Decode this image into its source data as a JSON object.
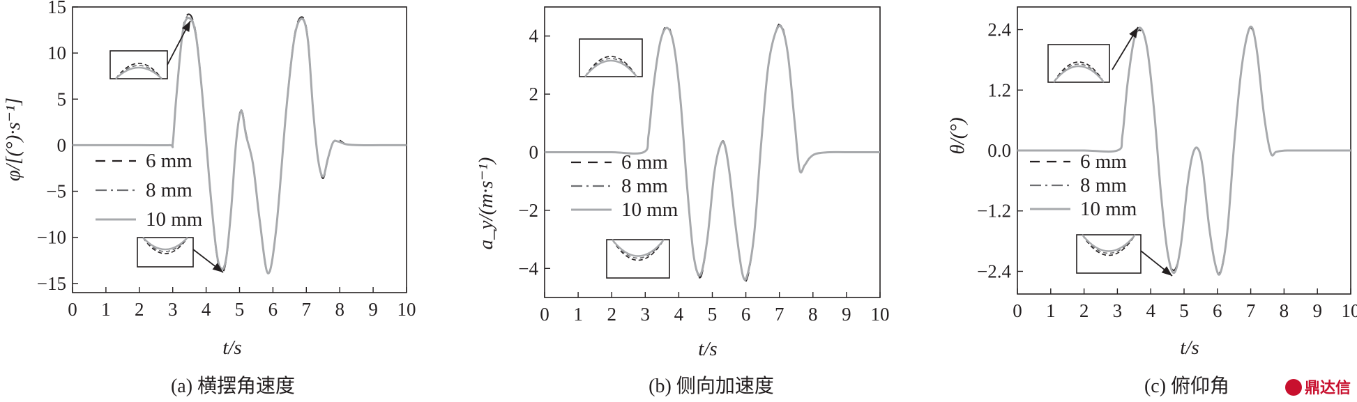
{
  "chart_data": [
    {
      "type": "line",
      "caption": "(a) 横摆角速度",
      "xlabel": "t/s",
      "ylabel": "φ/[(°)·s⁻¹]",
      "xlim": [
        0,
        10
      ],
      "ylim": [
        -16,
        15
      ],
      "xticks": [
        "0",
        "1",
        "2",
        "3",
        "4",
        "5",
        "6",
        "7",
        "8",
        "9",
        "10"
      ],
      "yticks": [
        "15",
        "10",
        "5",
        "0",
        "−5",
        "−10",
        "−15"
      ],
      "ytick_values": [
        15,
        10,
        5,
        0,
        -5,
        -10,
        -15
      ],
      "legend": [
        "6 mm",
        "8 mm",
        "10 mm"
      ],
      "legend_position": "lower-left",
      "zoom_insets": [
        "peak at t≈3.5 s",
        "trough at t≈4.4 s"
      ],
      "x": [
        0,
        1,
        2,
        2.9,
        3.0,
        3.1,
        3.3,
        3.5,
        3.7,
        3.9,
        4.1,
        4.3,
        4.45,
        4.6,
        4.75,
        4.9,
        5.05,
        5.2,
        5.4,
        5.6,
        5.85,
        6.1,
        6.4,
        6.65,
        6.88,
        7.05,
        7.2,
        7.35,
        7.5,
        7.65,
        7.8,
        7.95,
        8.2,
        8.6,
        9.2,
        10
      ],
      "series": [
        {
          "name": "6 mm",
          "values": [
            0,
            0,
            0,
            0,
            0.2,
            5.0,
            12.5,
            14.2,
            12.0,
            5.0,
            -4.0,
            -11.5,
            -13.8,
            -12.5,
            -7.0,
            0.5,
            3.9,
            1.2,
            -2.0,
            -8.0,
            -14.0,
            -9.0,
            4.0,
            12.0,
            13.9,
            11.5,
            4.0,
            -1.5,
            -3.6,
            -1.5,
            0.3,
            0.6,
            0.1,
            0,
            0,
            0
          ]
        },
        {
          "name": "8 mm",
          "values": [
            0,
            0,
            0,
            0,
            0.2,
            5.0,
            12.4,
            14.0,
            11.9,
            5.0,
            -4.0,
            -11.4,
            -13.6,
            -12.4,
            -7.0,
            0.5,
            3.8,
            1.1,
            -2.0,
            -8.0,
            -13.9,
            -9.0,
            4.0,
            11.9,
            13.8,
            11.4,
            4.0,
            -1.5,
            -3.5,
            -1.5,
            0.3,
            0.5,
            0.1,
            0,
            0,
            0
          ]
        },
        {
          "name": "10 mm",
          "values": [
            0,
            0,
            0,
            0,
            0.2,
            4.9,
            12.3,
            13.8,
            11.8,
            4.9,
            -4.0,
            -11.3,
            -13.4,
            -12.3,
            -7.0,
            0.4,
            3.7,
            1.0,
            -2.0,
            -8.0,
            -13.9,
            -9.0,
            3.9,
            11.8,
            13.7,
            11.3,
            3.9,
            -1.5,
            -3.4,
            -1.4,
            0.3,
            0.4,
            0.1,
            0,
            0,
            0
          ]
        }
      ]
    },
    {
      "type": "line",
      "caption": "(b) 侧向加速度",
      "xlabel": "t/s",
      "ylabel": "a_y/(m·s⁻¹)",
      "xlim": [
        0,
        10
      ],
      "ylim": [
        -5,
        5
      ],
      "xticks": [
        "0",
        "1",
        "2",
        "3",
        "4",
        "5",
        "6",
        "7",
        "8",
        "9",
        "10"
      ],
      "yticks": [
        "4",
        "2",
        "0",
        "−2",
        "−4"
      ],
      "ytick_values": [
        4,
        2,
        0,
        -2,
        -4
      ],
      "legend": [
        "6 mm",
        "8 mm",
        "10 mm"
      ],
      "legend_position": "lower-left",
      "zoom_insets": [
        "peak at t≈3.6 s",
        "trough at t≈4.6 s"
      ],
      "x": [
        0,
        1,
        2,
        2.95,
        3.1,
        3.25,
        3.45,
        3.65,
        3.85,
        4.05,
        4.25,
        4.45,
        4.65,
        4.85,
        5.05,
        5.2,
        5.35,
        5.5,
        5.7,
        5.9,
        6.05,
        6.25,
        6.45,
        6.65,
        6.85,
        7.05,
        7.25,
        7.45,
        7.6,
        7.75,
        7.9,
        8.1,
        8.5,
        9,
        10
      ],
      "series": [
        {
          "name": "6 mm",
          "values": [
            0,
            0,
            0,
            0,
            0.6,
            2.3,
            3.8,
            4.35,
            3.7,
            1.8,
            -1.2,
            -3.6,
            -4.3,
            -3.0,
            -0.8,
            0.1,
            0.35,
            -0.6,
            -2.6,
            -4.2,
            -4.3,
            -2.8,
            0.2,
            2.8,
            4.0,
            4.4,
            3.4,
            1.1,
            -0.6,
            -0.45,
            -0.2,
            -0.05,
            0,
            0,
            0
          ]
        },
        {
          "name": "8 mm",
          "values": [
            0,
            0,
            0,
            0,
            0.6,
            2.3,
            3.8,
            4.3,
            3.7,
            1.8,
            -1.2,
            -3.6,
            -4.25,
            -3.0,
            -0.8,
            0.1,
            0.33,
            -0.6,
            -2.6,
            -4.2,
            -4.25,
            -2.8,
            0.2,
            2.8,
            4.0,
            4.35,
            3.4,
            1.1,
            -0.6,
            -0.45,
            -0.2,
            -0.05,
            0,
            0,
            0
          ]
        },
        {
          "name": "10 mm",
          "values": [
            0,
            0,
            0,
            0,
            0.6,
            2.3,
            3.8,
            4.28,
            3.7,
            1.8,
            -1.2,
            -3.6,
            -4.2,
            -3.0,
            -0.8,
            0.1,
            0.32,
            -0.6,
            -2.6,
            -4.2,
            -4.2,
            -2.8,
            0.2,
            2.8,
            4.0,
            4.32,
            3.4,
            1.1,
            -0.6,
            -0.45,
            -0.2,
            -0.05,
            0,
            0,
            0
          ]
        }
      ]
    },
    {
      "type": "line",
      "caption": "(c) 俯仰角",
      "xlabel": "t/s",
      "ylabel": "θ/(°)",
      "xlim": [
        0,
        10
      ],
      "ylim": [
        -2.85,
        2.85
      ],
      "xticks": [
        "0",
        "1",
        "2",
        "3",
        "4",
        "5",
        "6",
        "7",
        "8",
        "9",
        "10"
      ],
      "yticks": [
        "2.4",
        "1.2",
        "0.0",
        "−1.2",
        "−2.4"
      ],
      "ytick_values": [
        2.4,
        1.2,
        0,
        -1.2,
        -2.4
      ],
      "legend": [
        "6 mm",
        "8 mm",
        "10 mm"
      ],
      "legend_position": "lower-left",
      "zoom_insets": [
        "peak at t≈3.7 s",
        "trough at t≈4.7 s"
      ],
      "x": [
        0,
        1,
        2,
        3.0,
        3.15,
        3.3,
        3.5,
        3.7,
        3.9,
        4.1,
        4.3,
        4.5,
        4.7,
        4.9,
        5.1,
        5.25,
        5.4,
        5.55,
        5.75,
        5.95,
        6.1,
        6.3,
        6.5,
        6.7,
        6.9,
        7.05,
        7.2,
        7.4,
        7.6,
        7.75,
        7.9,
        8.1,
        8.5,
        9,
        10
      ],
      "series": [
        {
          "name": "6 mm",
          "values": [
            0,
            0,
            0,
            0,
            0.3,
            1.3,
            2.2,
            2.38,
            2.0,
            0.8,
            -0.8,
            -2.0,
            -2.38,
            -1.9,
            -0.7,
            -0.1,
            0.05,
            -0.3,
            -1.5,
            -2.3,
            -2.38,
            -1.6,
            0.1,
            1.5,
            2.3,
            2.4,
            1.9,
            0.7,
            -0.05,
            -0.03,
            -0.01,
            0,
            0,
            0,
            0
          ]
        },
        {
          "name": "8 mm",
          "values": [
            0,
            0,
            0,
            0,
            0.3,
            1.3,
            2.2,
            2.42,
            2.0,
            0.8,
            -0.8,
            -2.0,
            -2.42,
            -1.9,
            -0.7,
            -0.1,
            0.05,
            -0.3,
            -1.5,
            -2.3,
            -2.4,
            -1.6,
            0.1,
            1.5,
            2.3,
            2.42,
            1.9,
            0.7,
            -0.05,
            -0.03,
            -0.01,
            0,
            0,
            0,
            0
          ]
        },
        {
          "name": "10 mm",
          "values": [
            0,
            0,
            0,
            0,
            0.3,
            1.3,
            2.2,
            2.43,
            2.0,
            0.8,
            -0.8,
            -2.0,
            -2.43,
            -1.9,
            -0.7,
            -0.1,
            0.05,
            -0.3,
            -1.5,
            -2.3,
            -2.41,
            -1.6,
            0.1,
            1.5,
            2.3,
            2.43,
            1.9,
            0.7,
            -0.05,
            -0.03,
            -0.01,
            0,
            0,
            0,
            0
          ]
        }
      ]
    }
  ],
  "series_styles": [
    {
      "color": "#231f20",
      "dash": "14,10"
    },
    {
      "color": "#6d6e71",
      "dash": "16,6,3,6"
    },
    {
      "color": "#a7a9ac",
      "dash": ""
    }
  ],
  "watermark": "鼎达信"
}
